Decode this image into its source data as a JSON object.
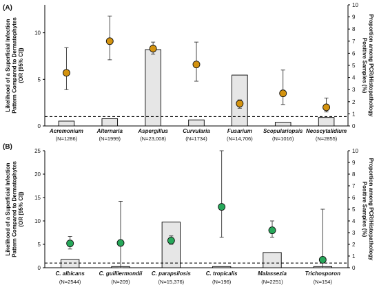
{
  "chart_data": [
    {
      "type": "bar+errorbar",
      "panel_label": "(A)",
      "ylabel_left": [
        "Likelihood of a Superficial Infection",
        "Pattern Compared to Dermatophytes",
        "(OR [95% CI])"
      ],
      "ylabel_right": [
        "Proportion among PCR/Histopathology",
        "Positive Samples (%)"
      ],
      "ylim_left": [
        0,
        13
      ],
      "yticks_left": [
        0,
        5,
        10
      ],
      "ylim_right": [
        0,
        10
      ],
      "yticks_right": [
        0,
        1,
        2,
        3,
        4,
        5,
        6,
        7,
        8,
        9,
        10
      ],
      "reference_line_or": 1,
      "marker_color": "#d4930f",
      "bar_color": "#e6e6e6",
      "categories": [
        "Acremonium",
        "Alternaria",
        "Aspergillus",
        "Curvularia",
        "Fusarium",
        "Scopulariopsis",
        "Neoscytalidium"
      ],
      "n_labels": [
        "(N=1286)",
        "(N=1999)",
        "(N=23,008)",
        "(N=1734)",
        "(N=14,706)",
        "(N=1016)",
        "(N=2855)"
      ],
      "bar_values_percent": [
        0.4,
        0.6,
        6.3,
        0.5,
        4.2,
        0.3,
        0.7
      ],
      "or_values": [
        5.7,
        9.1,
        8.3,
        6.6,
        2.4,
        3.5,
        2.0
      ],
      "ci_lower": [
        3.9,
        7.1,
        7.7,
        4.8,
        1.9,
        2.3,
        1.5
      ],
      "ci_upper": [
        8.4,
        11.8,
        9.0,
        9.0,
        2.8,
        6.0,
        3.0
      ]
    },
    {
      "type": "bar+errorbar",
      "panel_label": "(B)",
      "ylabel_left": [
        "Likelihood of a Superficial Infection",
        "Pattern Compared to Dermatophytes",
        "(OR [95% CI])"
      ],
      "ylabel_right": [
        "Proportion among PCR/Histopathology",
        "Positive Samples (%)"
      ],
      "ylim_left": [
        0,
        25
      ],
      "yticks_left": [
        0,
        5,
        10,
        15,
        20,
        25
      ],
      "ylim_right": [
        0,
        10
      ],
      "yticks_right": [
        0,
        1,
        2,
        3,
        4,
        5,
        6,
        7,
        8,
        9,
        10
      ],
      "reference_line_or": 1,
      "marker_color": "#27a85a",
      "bar_color": "#e6e6e6",
      "categories": [
        "C. albicans",
        "C. guilliermondii",
        "C. parapsilosis",
        "C. tropicalis",
        "Malassezia",
        "Trichosporon"
      ],
      "n_labels": [
        "(N=2544)",
        "(N=209)",
        "(N=15,376)",
        "(N=196)",
        "(N=2251)",
        "(N=154)"
      ],
      "bar_values_percent": [
        0.7,
        0.1,
        3.9,
        0.1,
        1.3,
        0.1
      ],
      "or_values": [
        5.2,
        5.3,
        5.8,
        13.0,
        8.0,
        1.7
      ],
      "ci_lower": [
        4.0,
        0.0,
        5.0,
        6.5,
        6.5,
        0.0
      ],
      "ci_upper": [
        6.7,
        14.2,
        6.8,
        25.0,
        10.0,
        12.5
      ]
    }
  ]
}
